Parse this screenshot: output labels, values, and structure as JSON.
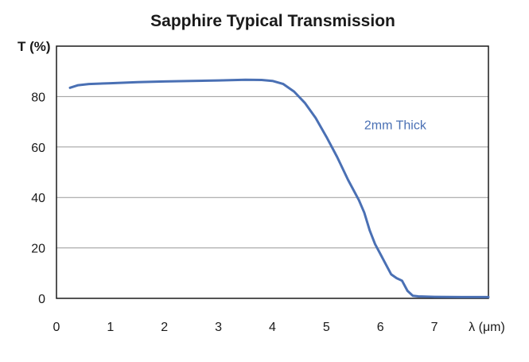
{
  "chart_data": {
    "type": "line",
    "title": "Sapphire Typical Transmission",
    "ylabel": "T (%)",
    "xlabel": "λ (μm)",
    "xlim": [
      0,
      8
    ],
    "ylim": [
      0,
      100
    ],
    "xticks": [
      "0",
      "1",
      "2",
      "3",
      "4",
      "5",
      "6",
      "7"
    ],
    "yticks": [
      "0",
      "20",
      "40",
      "60",
      "80"
    ],
    "grid": true,
    "series": [
      {
        "name": "2mm Thick",
        "color": "#4a70b4",
        "x": [
          0.25,
          0.4,
          0.6,
          1.0,
          1.5,
          2.0,
          2.5,
          3.0,
          3.5,
          3.8,
          4.0,
          4.2,
          4.4,
          4.6,
          4.8,
          5.0,
          5.2,
          5.4,
          5.6,
          5.7,
          5.8,
          5.9,
          6.0,
          6.1,
          6.2,
          6.3,
          6.4,
          6.5,
          6.6,
          6.7,
          7.0,
          7.5,
          8.0
        ],
        "y": [
          83.5,
          84.5,
          85.0,
          85.3,
          85.7,
          86.0,
          86.2,
          86.4,
          86.7,
          86.6,
          86.2,
          85.0,
          82.0,
          77.5,
          71.5,
          64.0,
          56.0,
          47.0,
          39.0,
          34.0,
          27.0,
          21.5,
          17.5,
          13.5,
          9.5,
          8.0,
          7.0,
          3.0,
          1.0,
          0.8,
          0.6,
          0.5,
          0.5
        ]
      }
    ],
    "annotations": [
      {
        "text": "2mm Thick",
        "x": 5.7,
        "y": 67
      }
    ]
  }
}
